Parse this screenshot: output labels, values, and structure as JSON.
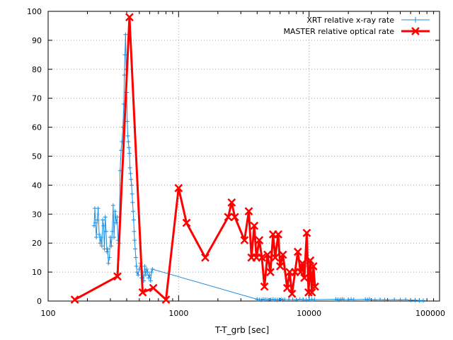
{
  "chart_data": {
    "type": "line",
    "xlabel": "T-T_grb [sec]",
    "ylabel": "",
    "xscale": "log",
    "xlim": [
      100,
      100000
    ],
    "ylim": [
      0,
      100
    ],
    "x_ticks": [
      "100",
      "1000",
      "10000",
      "100000"
    ],
    "y_ticks": [
      "0",
      "10",
      "20",
      "30",
      "40",
      "50",
      "60",
      "70",
      "80",
      "90",
      "100"
    ],
    "x_tick_values": [
      100,
      1000,
      10000,
      100000
    ],
    "y_tick_values": [
      0,
      10,
      20,
      30,
      40,
      50,
      60,
      70,
      80,
      90,
      100
    ],
    "grid": "dotted",
    "legend_position": "top-right",
    "series": [
      {
        "name": "XRT relative  x-ray rate",
        "color": "#1f8ee0",
        "marker": "plus",
        "x": [
          225,
          228,
          231,
          234,
          238,
          242,
          246,
          250,
          254,
          258,
          262,
          266,
          270,
          274,
          278,
          282,
          286,
          290,
          295,
          300,
          305,
          310,
          315,
          320,
          326,
          332,
          338,
          344,
          350,
          356,
          362,
          368,
          374,
          380,
          384,
          388,
          392,
          396,
          400,
          404,
          408,
          412,
          416,
          420,
          424,
          428,
          432,
          436,
          440,
          444,
          448,
          452,
          456,
          460,
          465,
          470,
          475,
          480,
          490,
          500,
          510,
          520,
          530,
          540,
          550,
          560,
          570,
          580,
          590,
          600,
          610,
          620,
          630,
          4000,
          4150,
          4300,
          4450,
          4600,
          4750,
          4900,
          5100,
          5300,
          5500,
          5700,
          5900,
          6100,
          6300,
          6500,
          7000,
          7500,
          8000,
          8500,
          9000,
          9500,
          10000,
          10500,
          11000,
          16000,
          16500,
          17000,
          17500,
          18000,
          18500,
          20000,
          21000,
          22000,
          27000,
          28000,
          29000,
          32000,
          35000,
          38000,
          45000,
          50000,
          55000,
          60000,
          65000,
          70000,
          75000
        ],
        "y": [
          26,
          32,
          27,
          22,
          28,
          32,
          23,
          20,
          22,
          19,
          28,
          26,
          18,
          29,
          24,
          17,
          18,
          13,
          15,
          22,
          19,
          24,
          33,
          22,
          31,
          27,
          29,
          21,
          20,
          45,
          52,
          55,
          60,
          68,
          78,
          85,
          92,
          80,
          72,
          62,
          57,
          55,
          53,
          51,
          46,
          44,
          42,
          40,
          37,
          34,
          31,
          28,
          24,
          21,
          18,
          15,
          12,
          10,
          9,
          11,
          13,
          8,
          10,
          7,
          12,
          9,
          11,
          10,
          8,
          9,
          7,
          10,
          11,
          0.6,
          0.5,
          0.4,
          0.6,
          0.5,
          0.5,
          0.4,
          0.5,
          0.6,
          0.5,
          0.4,
          0.5,
          0.6,
          0.4,
          0.5,
          0.5,
          0.5,
          0.4,
          0.6,
          0.5,
          0.4,
          0.5,
          0.6,
          0.5,
          0.6,
          0.5,
          0.4,
          0.5,
          0.6,
          0.5,
          0.5,
          0.6,
          0.5,
          0.6,
          0.5,
          0.6,
          0.4,
          0.5,
          0.4,
          0.5,
          0.4,
          0.5,
          0.3,
          0.3,
          0.2,
          0.2
        ]
      },
      {
        "name": "MASTER relative optical rate",
        "color": "#ff0000",
        "marker": "x",
        "x": [
          160,
          340,
          420,
          530,
          640,
          800,
          1000,
          1150,
          1600,
          2400,
          2550,
          2700,
          3200,
          3450,
          3620,
          3800,
          3950,
          4150,
          4350,
          4550,
          4800,
          5050,
          5300,
          5500,
          5800,
          6000,
          6300,
          6800,
          7100,
          7400,
          7800,
          8200,
          8600,
          8900,
          9200,
          9600,
          9900,
          10200,
          10500,
          10800,
          11100
        ],
        "y": [
          0.5,
          8.5,
          98,
          3,
          4.5,
          0.5,
          39,
          27,
          15,
          29,
          34,
          29,
          21,
          31,
          15,
          26,
          15,
          21,
          15,
          5,
          16,
          10,
          23,
          15,
          23,
          12,
          16,
          4.5,
          10,
          2.5,
          10,
          17,
          10,
          13,
          8,
          23.5,
          3,
          14,
          3,
          12,
          5
        ]
      }
    ]
  }
}
